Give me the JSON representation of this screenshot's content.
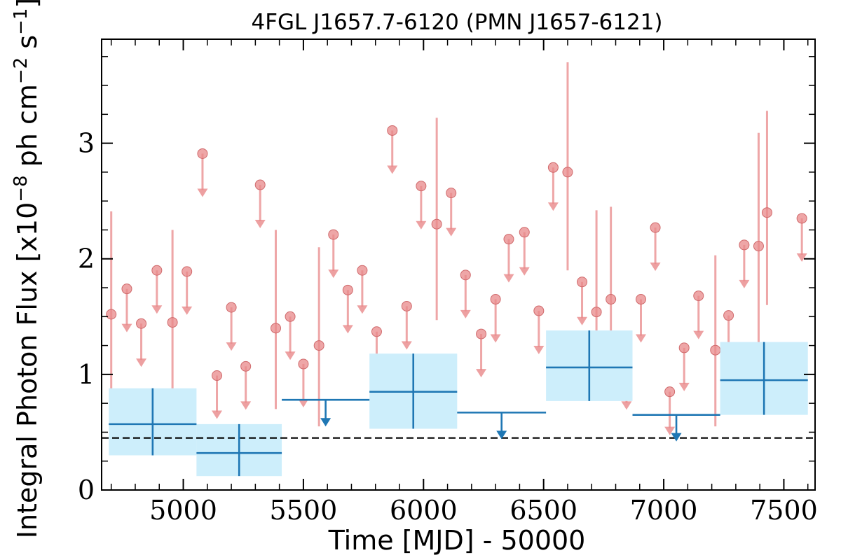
{
  "chart_data": {
    "type": "scatter",
    "title": "4FGL J1657.7-6120 (PMN J1657-6121)",
    "xlabel": "Time [MJD] - 50000",
    "ylabel_parts": {
      "pre": "Integral Photon Flux [x10",
      "exp1": "−8",
      "mid": " ph cm",
      "exp2": "−2",
      "mid2": " s",
      "exp3": "−1",
      "post": "]"
    },
    "xlim": [
      4660,
      7630
    ],
    "ylim": [
      0,
      3.9
    ],
    "xticks": [
      5000,
      5500,
      6000,
      6500,
      7000,
      7500
    ],
    "yticks": [
      0,
      1,
      2,
      3
    ],
    "baseline": 0.45,
    "colors": {
      "short_bins": "#e8888a",
      "long_bins": "#1f77b4",
      "long_band": "#cdeefb",
      "baseline": "#000000"
    },
    "short_detections": [
      {
        "x": 4700,
        "y": 1.52,
        "lo": 0.78,
        "hi": 2.41
      },
      {
        "x": 4955,
        "y": 1.45,
        "lo": 0.81,
        "hi": 2.25
      },
      {
        "x": 5385,
        "y": 1.4,
        "lo": 0.7,
        "hi": 2.25
      },
      {
        "x": 5565,
        "y": 1.25,
        "lo": 0.55,
        "hi": 2.1
      },
      {
        "x": 6055,
        "y": 2.3,
        "lo": 1.47,
        "hi": 3.22
      },
      {
        "x": 6600,
        "y": 2.75,
        "lo": 1.9,
        "hi": 3.7
      },
      {
        "x": 6720,
        "y": 1.54,
        "lo": 0.8,
        "hi": 2.42
      },
      {
        "x": 6780,
        "y": 1.65,
        "lo": 0.92,
        "hi": 2.45
      },
      {
        "x": 7215,
        "y": 1.21,
        "lo": 0.55,
        "hi": 2.03
      },
      {
        "x": 7395,
        "y": 2.11,
        "lo": 1.23,
        "hi": 3.09
      },
      {
        "x": 7430,
        "y": 2.4,
        "lo": 1.6,
        "hi": 3.28
      }
    ],
    "short_upper_limits": [
      {
        "x": 4765,
        "y": 1.74
      },
      {
        "x": 4825,
        "y": 1.44
      },
      {
        "x": 4890,
        "y": 1.9
      },
      {
        "x": 5015,
        "y": 1.89
      },
      {
        "x": 5080,
        "y": 2.91
      },
      {
        "x": 5140,
        "y": 0.99
      },
      {
        "x": 5200,
        "y": 1.58
      },
      {
        "x": 5260,
        "y": 1.07
      },
      {
        "x": 5320,
        "y": 2.64
      },
      {
        "x": 5445,
        "y": 1.5
      },
      {
        "x": 5500,
        "y": 1.09
      },
      {
        "x": 5625,
        "y": 2.21
      },
      {
        "x": 5685,
        "y": 1.73
      },
      {
        "x": 5745,
        "y": 1.9
      },
      {
        "x": 5805,
        "y": 1.37
      },
      {
        "x": 5870,
        "y": 3.11
      },
      {
        "x": 5930,
        "y": 1.59
      },
      {
        "x": 5990,
        "y": 2.63
      },
      {
        "x": 6115,
        "y": 2.57
      },
      {
        "x": 6175,
        "y": 1.86
      },
      {
        "x": 6240,
        "y": 1.35
      },
      {
        "x": 6300,
        "y": 1.65
      },
      {
        "x": 6355,
        "y": 2.17
      },
      {
        "x": 6420,
        "y": 2.23
      },
      {
        "x": 6480,
        "y": 1.55
      },
      {
        "x": 6540,
        "y": 2.79
      },
      {
        "x": 6660,
        "y": 1.8
      },
      {
        "x": 6845,
        "y": 1.07
      },
      {
        "x": 6905,
        "y": 1.65
      },
      {
        "x": 6965,
        "y": 2.27
      },
      {
        "x": 7025,
        "y": 0.85
      },
      {
        "x": 7085,
        "y": 1.23
      },
      {
        "x": 7145,
        "y": 1.68
      },
      {
        "x": 7270,
        "y": 1.51
      },
      {
        "x": 7335,
        "y": 2.12
      },
      {
        "x": 7510,
        "y": 1.2
      },
      {
        "x": 7575,
        "y": 2.35
      }
    ],
    "long_detections": [
      {
        "x0": 4690,
        "x1": 5055,
        "y": 0.57,
        "lo": 0.3,
        "hi": 0.88
      },
      {
        "x0": 5055,
        "x1": 5410,
        "y": 0.32,
        "lo": 0.12,
        "hi": 0.57
      },
      {
        "x0": 5775,
        "x1": 6140,
        "y": 0.85,
        "lo": 0.53,
        "hi": 1.18
      },
      {
        "x0": 6510,
        "x1": 6870,
        "y": 1.06,
        "lo": 0.77,
        "hi": 1.38
      },
      {
        "x0": 7235,
        "x1": 7600,
        "y": 0.95,
        "lo": 0.65,
        "hi": 1.28
      }
    ],
    "long_upper_limits": [
      {
        "x0": 5410,
        "x1": 5775,
        "y": 0.78
      },
      {
        "x0": 6140,
        "x1": 6510,
        "y": 0.67
      },
      {
        "x0": 6870,
        "x1": 7235,
        "y": 0.65
      }
    ]
  }
}
